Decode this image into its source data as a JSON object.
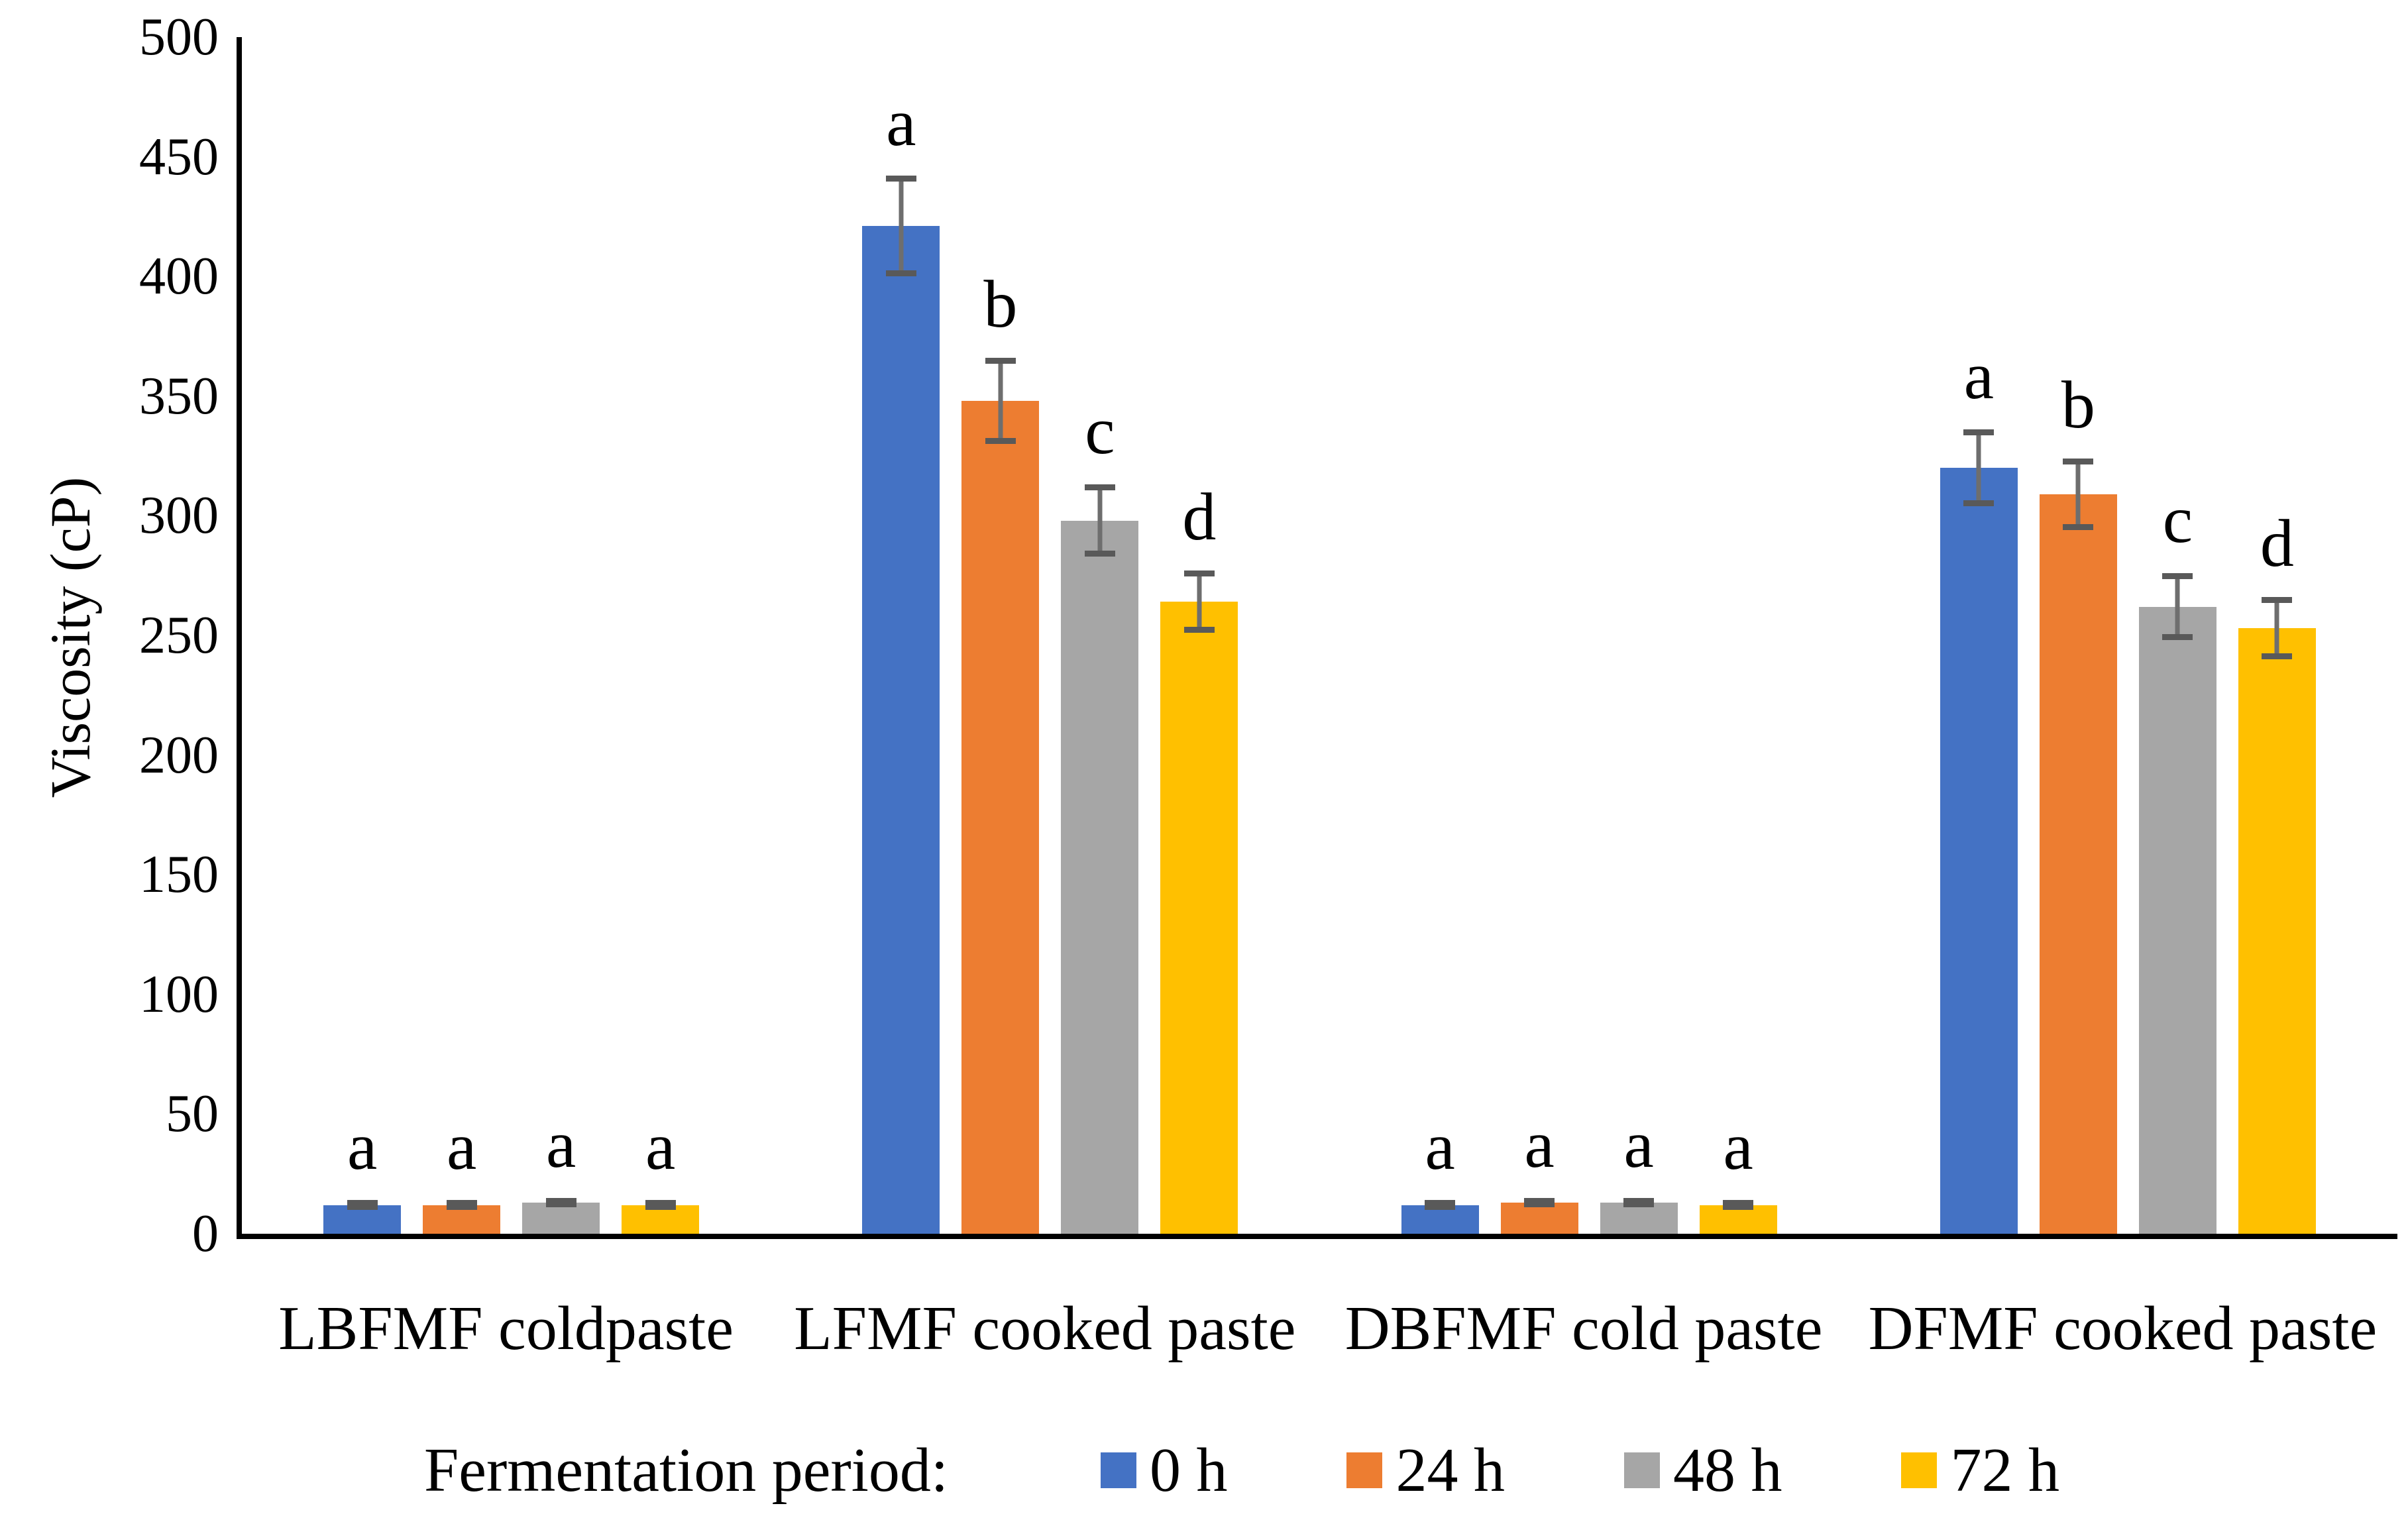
{
  "chart_data": {
    "type": "bar",
    "title": "",
    "xlabel": "",
    "ylabel": "Viscosity (cP)",
    "ylim": [
      0,
      500
    ],
    "yticks": [
      0,
      50,
      100,
      150,
      200,
      250,
      300,
      350,
      400,
      450,
      500
    ],
    "grid": false,
    "legend_position": "bottom",
    "legend_title": "Fermentation period:",
    "categories": [
      "LBFMF coldpaste",
      "LFMF cooked paste",
      "DBFMF cold paste",
      "DFMF cooked paste"
    ],
    "series": [
      {
        "name": "0 h",
        "color": "#4472C4",
        "values": [
          12,
          421,
          12,
          320
        ],
        "errors": [
          2,
          21,
          2,
          16
        ],
        "letters": [
          "a",
          "a",
          "a",
          "a"
        ]
      },
      {
        "name": "24 h",
        "color": "#ED7D31",
        "values": [
          12,
          348,
          13,
          309
        ],
        "errors": [
          2,
          18,
          2,
          15
        ],
        "letters": [
          "a",
          "b",
          "a",
          "b"
        ]
      },
      {
        "name": "48 h",
        "color": "#A6A6A6",
        "values": [
          13,
          298,
          13,
          262
        ],
        "errors": [
          2,
          15,
          2,
          14
        ],
        "letters": [
          "a",
          "c",
          "a",
          "c"
        ]
      },
      {
        "name": "72 h",
        "color": "#FFC000",
        "values": [
          12,
          264,
          12,
          253
        ],
        "errors": [
          2,
          13,
          2,
          13
        ],
        "letters": [
          "a",
          "d",
          "a",
          "d"
        ]
      }
    ],
    "error_bar_cap_color": "#595959",
    "error_bar_stem_color": "#6e6e6e",
    "axis_color": "#000000"
  }
}
